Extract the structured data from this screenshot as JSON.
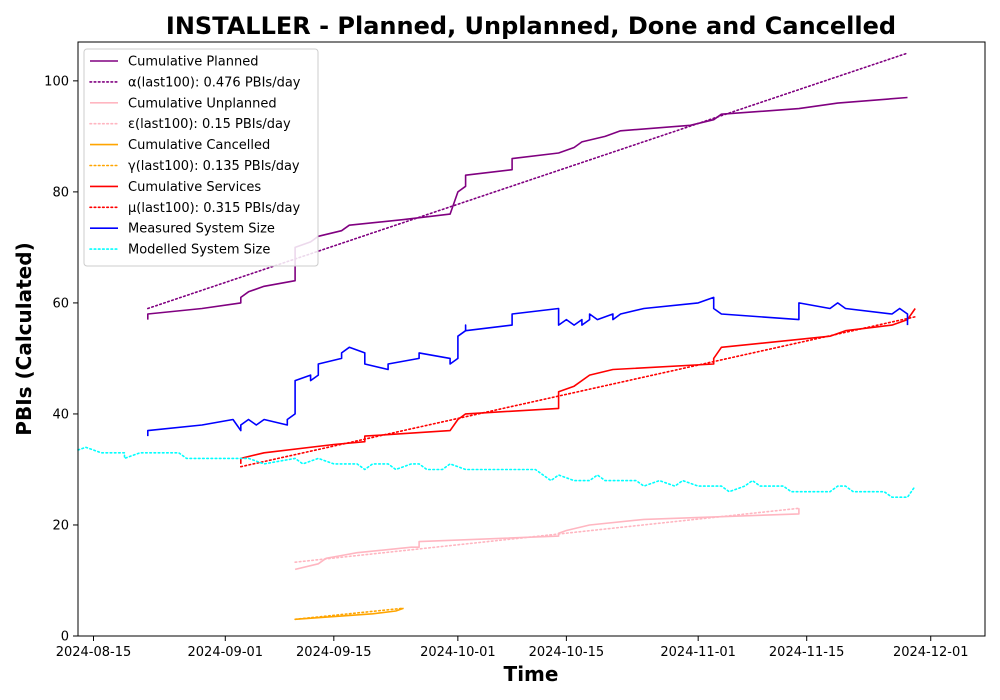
{
  "chart_data": {
    "type": "line",
    "title": "INSTALLER - Planned, Unplanned, Done  and Cancelled",
    "xlabel": "Time",
    "ylabel": "PBIs (Calculated)",
    "xlim": [
      "2024-08-13",
      "2024-12-08"
    ],
    "ylim": [
      0,
      107
    ],
    "x_ticks": [
      "2024-08-15",
      "2024-09-01",
      "2024-09-15",
      "2024-10-01",
      "2024-10-15",
      "2024-11-01",
      "2024-11-15",
      "2024-12-01"
    ],
    "y_ticks": [
      0,
      20,
      40,
      60,
      80,
      100
    ],
    "grid": false,
    "legend_position": "top-left",
    "series": [
      {
        "name": "Cumulative Planned",
        "color": "#800080",
        "style": "solid",
        "points": [
          [
            "2024-08-22",
            57
          ],
          [
            "2024-08-22",
            58
          ],
          [
            "2024-08-29",
            59
          ],
          [
            "2024-09-03",
            60
          ],
          [
            "2024-09-03",
            61
          ],
          [
            "2024-09-04",
            62
          ],
          [
            "2024-09-06",
            63
          ],
          [
            "2024-09-10",
            64
          ],
          [
            "2024-09-10",
            70
          ],
          [
            "2024-09-12",
            71
          ],
          [
            "2024-09-13",
            72
          ],
          [
            "2024-09-16",
            73
          ],
          [
            "2024-09-17",
            74
          ],
          [
            "2024-09-24",
            75
          ],
          [
            "2024-09-30",
            76
          ],
          [
            "2024-10-01",
            80
          ],
          [
            "2024-10-02",
            81
          ],
          [
            "2024-10-02",
            83
          ],
          [
            "2024-10-08",
            84
          ],
          [
            "2024-10-08",
            86
          ],
          [
            "2024-10-14",
            87
          ],
          [
            "2024-10-16",
            88
          ],
          [
            "2024-10-17",
            89
          ],
          [
            "2024-10-20",
            90
          ],
          [
            "2024-10-22",
            91
          ],
          [
            "2024-10-31",
            92
          ],
          [
            "2024-11-03",
            93
          ],
          [
            "2024-11-04",
            94
          ],
          [
            "2024-11-14",
            95
          ],
          [
            "2024-11-19",
            96
          ],
          [
            "2024-11-28",
            97
          ]
        ]
      },
      {
        "name": "α(last100): 0.476 PBIs/day",
        "color": "#800080",
        "style": "dotted",
        "points": [
          [
            "2024-08-22",
            59
          ],
          [
            "2024-11-28",
            105
          ]
        ]
      },
      {
        "name": "Cumulative Unplanned",
        "color": "#ffb6c1",
        "style": "solid",
        "points": [
          [
            "2024-09-10",
            12
          ],
          [
            "2024-09-13",
            13
          ],
          [
            "2024-09-14",
            14
          ],
          [
            "2024-09-16",
            14.5
          ],
          [
            "2024-09-18",
            15
          ],
          [
            "2024-09-25",
            16
          ],
          [
            "2024-09-26",
            16
          ],
          [
            "2024-09-26",
            17
          ],
          [
            "2024-10-14",
            18
          ],
          [
            "2024-10-14",
            18.5
          ],
          [
            "2024-10-15",
            19
          ],
          [
            "2024-10-18",
            20
          ],
          [
            "2024-10-25",
            21
          ],
          [
            "2024-11-14",
            22
          ],
          [
            "2024-11-14",
            23
          ]
        ]
      },
      {
        "name": "ε(last100): 0.15 PBIs/day",
        "color": "#ffb6c1",
        "style": "dotted",
        "points": [
          [
            "2024-09-10",
            13.3
          ],
          [
            "2024-11-14",
            23
          ]
        ]
      },
      {
        "name": "Cumulative Cancelled",
        "color": "#ffa500",
        "style": "solid",
        "points": [
          [
            "2024-09-10",
            3
          ],
          [
            "2024-09-20",
            4
          ],
          [
            "2024-09-23",
            4.5
          ],
          [
            "2024-09-24",
            5
          ]
        ]
      },
      {
        "name": "γ(last100): 0.135 PBIs/day",
        "color": "#ffa500",
        "style": "dotted",
        "points": [
          [
            "2024-09-10",
            3
          ],
          [
            "2024-09-24",
            5
          ]
        ]
      },
      {
        "name": "Cumulative Services",
        "color": "#ff0000",
        "style": "solid",
        "points": [
          [
            "2024-09-03",
            31
          ],
          [
            "2024-09-03",
            32
          ],
          [
            "2024-09-06",
            33
          ],
          [
            "2024-09-15",
            34.5
          ],
          [
            "2024-09-19",
            35
          ],
          [
            "2024-09-19",
            36
          ],
          [
            "2024-09-30",
            37
          ],
          [
            "2024-10-01",
            39
          ],
          [
            "2024-10-02",
            40
          ],
          [
            "2024-10-14",
            41
          ],
          [
            "2024-10-14",
            44
          ],
          [
            "2024-10-16",
            45
          ],
          [
            "2024-10-18",
            47
          ],
          [
            "2024-10-21",
            48
          ],
          [
            "2024-11-03",
            49
          ],
          [
            "2024-11-03",
            50
          ],
          [
            "2024-11-04",
            52
          ],
          [
            "2024-11-18",
            54
          ],
          [
            "2024-11-20",
            55
          ],
          [
            "2024-11-26",
            56
          ],
          [
            "2024-11-28",
            57
          ],
          [
            "2024-11-29",
            59
          ]
        ]
      },
      {
        "name": "μ(last100): 0.315 PBIs/day",
        "color": "#ff0000",
        "style": "dotted",
        "points": [
          [
            "2024-09-03",
            30.5
          ],
          [
            "2024-11-29",
            57.5
          ]
        ]
      },
      {
        "name": "Measured System Size",
        "color": "#0000ff",
        "style": "solid",
        "points": [
          [
            "2024-08-22",
            36
          ],
          [
            "2024-08-22",
            37
          ],
          [
            "2024-08-29",
            38
          ],
          [
            "2024-09-02",
            39
          ],
          [
            "2024-09-03",
            37
          ],
          [
            "2024-09-03",
            38
          ],
          [
            "2024-09-04",
            39
          ],
          [
            "2024-09-05",
            38
          ],
          [
            "2024-09-06",
            39
          ],
          [
            "2024-09-09",
            38
          ],
          [
            "2024-09-09",
            39
          ],
          [
            "2024-09-10",
            40
          ],
          [
            "2024-09-10",
            46
          ],
          [
            "2024-09-12",
            47
          ],
          [
            "2024-09-12",
            46
          ],
          [
            "2024-09-13",
            47
          ],
          [
            "2024-09-13",
            49
          ],
          [
            "2024-09-16",
            50
          ],
          [
            "2024-09-16",
            51
          ],
          [
            "2024-09-17",
            52
          ],
          [
            "2024-09-19",
            51
          ],
          [
            "2024-09-19",
            49
          ],
          [
            "2024-09-22",
            48
          ],
          [
            "2024-09-22",
            49
          ],
          [
            "2024-09-26",
            50
          ],
          [
            "2024-09-26",
            51
          ],
          [
            "2024-09-30",
            50
          ],
          [
            "2024-09-30",
            49
          ],
          [
            "2024-10-01",
            50
          ],
          [
            "2024-10-01",
            54
          ],
          [
            "2024-10-02",
            55
          ],
          [
            "2024-10-02",
            56
          ],
          [
            "2024-10-02",
            55
          ],
          [
            "2024-10-08",
            56
          ],
          [
            "2024-10-08",
            58
          ],
          [
            "2024-10-14",
            59
          ],
          [
            "2024-10-14",
            56
          ],
          [
            "2024-10-15",
            57
          ],
          [
            "2024-10-16",
            56
          ],
          [
            "2024-10-17",
            57
          ],
          [
            "2024-10-17",
            56
          ],
          [
            "2024-10-18",
            57
          ],
          [
            "2024-10-18",
            58
          ],
          [
            "2024-10-19",
            57
          ],
          [
            "2024-10-21",
            58
          ],
          [
            "2024-10-21",
            57
          ],
          [
            "2024-10-22",
            58
          ],
          [
            "2024-10-25",
            59
          ],
          [
            "2024-11-01",
            60
          ],
          [
            "2024-11-03",
            61
          ],
          [
            "2024-11-03",
            59
          ],
          [
            "2024-11-04",
            58
          ],
          [
            "2024-11-14",
            57
          ],
          [
            "2024-11-14",
            60
          ],
          [
            "2024-11-18",
            59
          ],
          [
            "2024-11-19",
            60
          ],
          [
            "2024-11-20",
            59
          ],
          [
            "2024-11-26",
            58
          ],
          [
            "2024-11-27",
            59
          ],
          [
            "2024-11-28",
            58
          ],
          [
            "2024-11-28",
            56
          ]
        ]
      },
      {
        "name": "Modelled System Size",
        "color": "#00ffff",
        "style": "dotted",
        "points": [
          [
            "2024-08-13",
            33.5
          ],
          [
            "2024-08-14",
            34
          ],
          [
            "2024-08-16",
            33
          ],
          [
            "2024-08-19",
            33
          ],
          [
            "2024-08-19",
            32
          ],
          [
            "2024-08-21",
            33
          ],
          [
            "2024-08-26",
            33
          ],
          [
            "2024-08-27",
            32
          ],
          [
            "2024-09-04",
            32
          ],
          [
            "2024-09-06",
            31
          ],
          [
            "2024-09-10",
            32
          ],
          [
            "2024-09-11",
            31
          ],
          [
            "2024-09-13",
            32
          ],
          [
            "2024-09-15",
            31
          ],
          [
            "2024-09-18",
            31
          ],
          [
            "2024-09-19",
            30
          ],
          [
            "2024-09-20",
            31
          ],
          [
            "2024-09-22",
            31
          ],
          [
            "2024-09-23",
            30
          ],
          [
            "2024-09-25",
            31
          ],
          [
            "2024-09-26",
            31
          ],
          [
            "2024-09-27",
            30
          ],
          [
            "2024-09-29",
            30
          ],
          [
            "2024-09-30",
            31
          ],
          [
            "2024-10-02",
            30
          ],
          [
            "2024-10-11",
            30
          ],
          [
            "2024-10-12",
            29
          ],
          [
            "2024-10-13",
            28
          ],
          [
            "2024-10-14",
            29
          ],
          [
            "2024-10-16",
            28
          ],
          [
            "2024-10-18",
            28
          ],
          [
            "2024-10-19",
            29
          ],
          [
            "2024-10-20",
            28
          ],
          [
            "2024-10-24",
            28
          ],
          [
            "2024-10-25",
            27
          ],
          [
            "2024-10-27",
            28
          ],
          [
            "2024-10-29",
            27
          ],
          [
            "2024-10-30",
            28
          ],
          [
            "2024-11-01",
            27
          ],
          [
            "2024-11-04",
            27
          ],
          [
            "2024-11-05",
            26
          ],
          [
            "2024-11-07",
            27
          ],
          [
            "2024-11-08",
            28
          ],
          [
            "2024-11-09",
            27
          ],
          [
            "2024-11-12",
            27
          ],
          [
            "2024-11-13",
            26
          ],
          [
            "2024-11-18",
            26
          ],
          [
            "2024-11-19",
            27
          ],
          [
            "2024-11-20",
            27
          ],
          [
            "2024-11-21",
            26
          ],
          [
            "2024-11-25",
            26
          ],
          [
            "2024-11-26",
            25
          ],
          [
            "2024-11-28",
            25
          ],
          [
            "2024-11-29",
            27
          ]
        ]
      }
    ]
  }
}
